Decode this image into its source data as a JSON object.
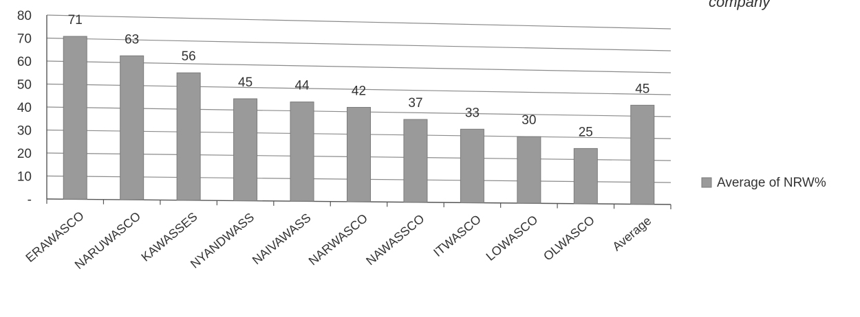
{
  "chart_data": {
    "type": "bar",
    "title": "company",
    "categories": [
      "ERAWASCO",
      "NARUWASCO",
      "KAWASSES",
      "NYANDWASS",
      "NAIVAWASS",
      "NARWASCO",
      "NAWASSCO",
      "ITWASCO",
      "LOWASCO",
      "OLWASCO",
      "Average"
    ],
    "series": [
      {
        "name": "Average of NRW%",
        "values": [
          71,
          63,
          56,
          45,
          44,
          42,
          37,
          33,
          30,
          25,
          45
        ]
      }
    ],
    "y_tick_labels": [
      "-",
      "10",
      "20",
      "30",
      "40",
      "50",
      "60",
      "70",
      "80"
    ],
    "ylim": [
      0,
      80
    ],
    "grid": true,
    "legend_position": "right",
    "colors": {
      "bar": "#9a9a9a",
      "bar_edge": "#7a7a7a",
      "grid": "#8a8a8a",
      "axis": "#555555"
    }
  }
}
